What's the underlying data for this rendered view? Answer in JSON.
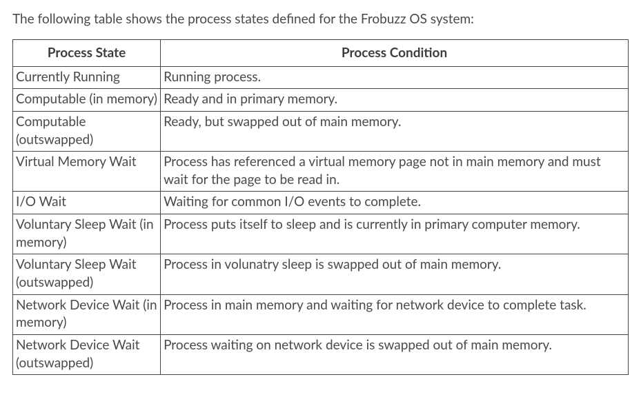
{
  "intro": "The following table shows the process states defined for the Frobuzz OS system:",
  "table": {
    "columns": [
      "Process State",
      "Process Condition"
    ],
    "col_widths": [
      "24%",
      "76%"
    ],
    "header_fontweight": 700,
    "border_color": "#444444",
    "background_color": "#ffffff",
    "text_color": "#4a4a4a",
    "fontsize": 19,
    "rows": [
      {
        "state": "Currently Running",
        "condition": "Running process."
      },
      {
        "state": "Computable (in memory)",
        "condition": "Ready and in primary memory."
      },
      {
        "state": "Computable (outswapped)",
        "condition": "Ready, but swapped out of main memory."
      },
      {
        "state": "Virtual Memory Wait",
        "condition": "Process has referenced a virtual memory page not in main memory and must wait for the page to be read in."
      },
      {
        "state": "I/O Wait",
        "condition": "Waiting for common I/O events to complete."
      },
      {
        "state": "Voluntary Sleep Wait (in memory)",
        "condition": "Process puts itself to sleep and is currently in primary computer memory."
      },
      {
        "state": "Voluntary Sleep Wait (outswapped)",
        "condition": "Process in volunatry sleep is swapped out of main memory."
      },
      {
        "state": "Network Device Wait (in memory)",
        "condition": "Process in main memory and waiting for network device to complete task."
      },
      {
        "state": "Network Device Wait (outswapped)",
        "condition": "Process waiting on network device is swapped out of main memory."
      }
    ]
  }
}
